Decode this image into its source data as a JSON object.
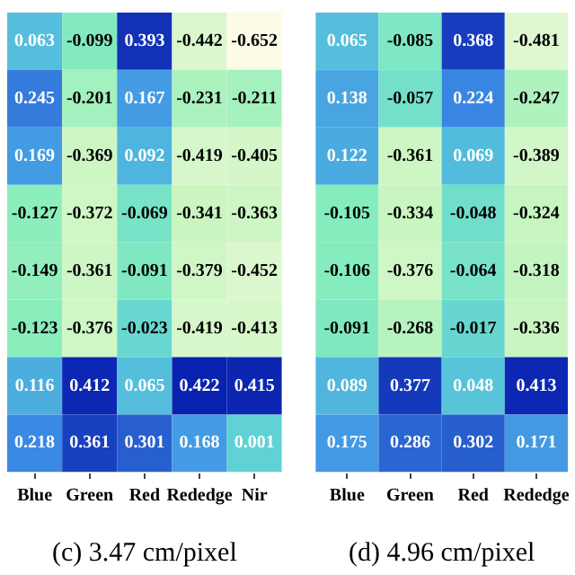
{
  "chart_data": [
    {
      "type": "heatmap",
      "data_labels": true,
      "title": "(c) 3.47 cm/pixel",
      "categories": [
        "Blue",
        "Green",
        "Red",
        "Rededge",
        "Nir"
      ],
      "y_categories": [
        null,
        null,
        null,
        null,
        null,
        null,
        null,
        null
      ],
      "cells": [
        [
          0.063,
          -0.099,
          0.393,
          -0.442,
          -0.652
        ],
        [
          0.245,
          -0.201,
          0.167,
          -0.231,
          -0.211
        ],
        [
          0.169,
          -0.369,
          0.092,
          -0.419,
          -0.405
        ],
        [
          -0.127,
          -0.372,
          -0.069,
          -0.341,
          -0.363
        ],
        [
          -0.149,
          -0.361,
          -0.091,
          -0.379,
          -0.452
        ],
        [
          -0.123,
          -0.376,
          -0.023,
          -0.419,
          -0.413
        ],
        [
          0.116,
          0.412,
          0.065,
          0.422,
          0.415
        ],
        [
          0.218,
          0.361,
          0.301,
          0.168,
          0.001
        ]
      ]
    },
    {
      "type": "heatmap",
      "data_labels": true,
      "title": "(d) 4.96 cm/pixel",
      "categories": [
        "Blue",
        "Green",
        "Red",
        "Rededge"
      ],
      "y_categories": [
        null,
        null,
        null,
        null,
        null,
        null,
        null,
        null
      ],
      "cells": [
        [
          0.065,
          -0.085,
          0.368,
          -0.481
        ],
        [
          0.138,
          -0.057,
          0.224,
          -0.247
        ],
        [
          0.122,
          -0.361,
          0.069,
          -0.389
        ],
        [
          -0.105,
          -0.334,
          -0.048,
          -0.324
        ],
        [
          -0.106,
          -0.376,
          -0.064,
          -0.318
        ],
        [
          -0.091,
          -0.268,
          -0.017,
          -0.336
        ],
        [
          0.089,
          0.377,
          0.048,
          0.413
        ],
        [
          0.175,
          0.286,
          0.302,
          0.171
        ]
      ]
    }
  ]
}
